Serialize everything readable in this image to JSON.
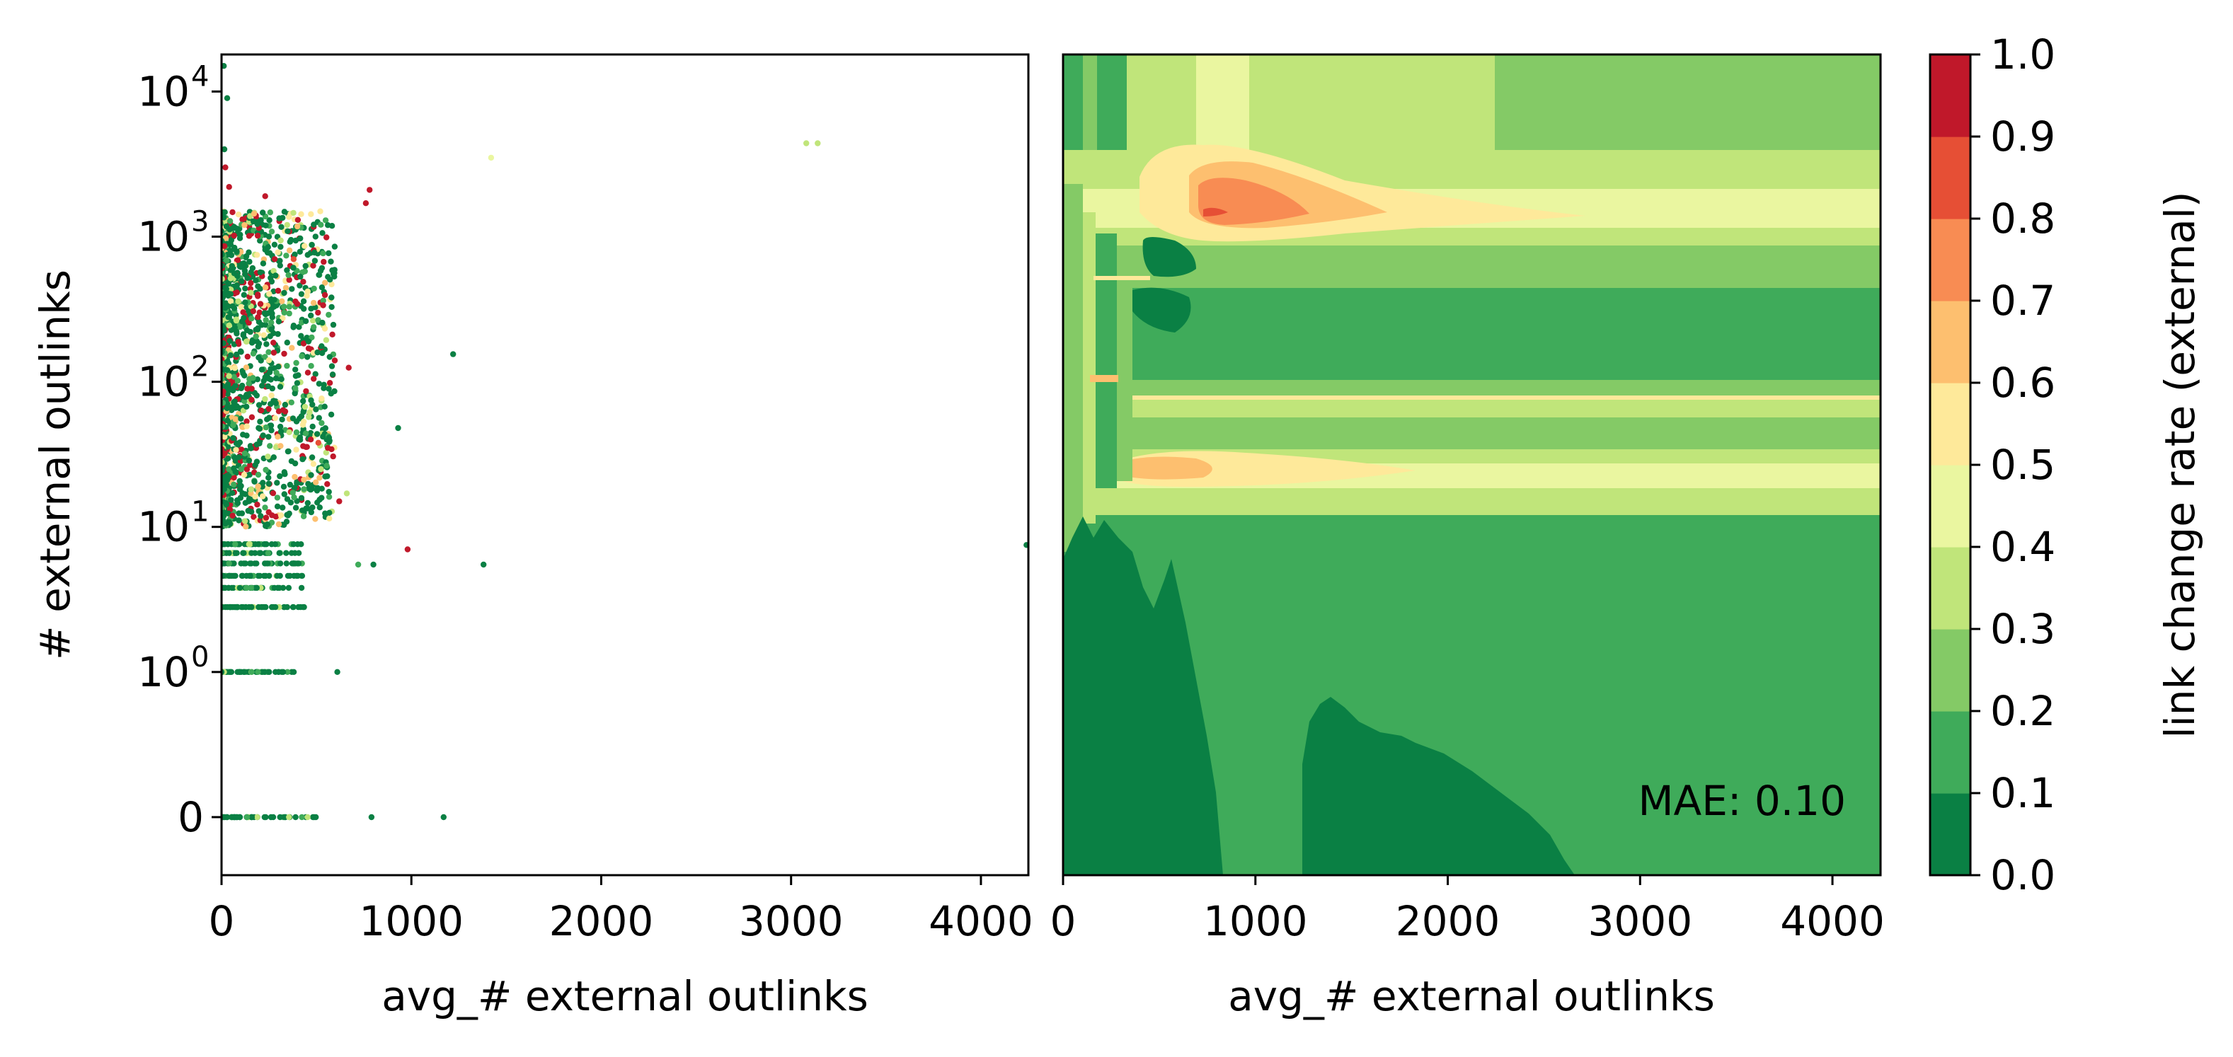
{
  "chart_data": [
    {
      "type": "scatter",
      "xlabel": "avg_# external outlinks",
      "ylabel": "# external outlinks",
      "xlim": [
        0,
        4250
      ],
      "yscale": "symlog",
      "ylim": [
        -0.4,
        18000
      ],
      "xticks": [
        0,
        1000,
        2000,
        3000,
        4000
      ],
      "xtick_labels": [
        "0",
        "1000",
        "2000",
        "3000",
        "4000"
      ],
      "yticks": [
        {
          "value": 0,
          "base": "0",
          "exp": ""
        },
        {
          "value": 1,
          "base": "10",
          "exp": "0"
        },
        {
          "value": 10,
          "base": "10",
          "exp": "1"
        },
        {
          "value": 100,
          "base": "10",
          "exp": "2"
        },
        {
          "value": 1000,
          "base": "10",
          "exp": "3"
        },
        {
          "value": 10000,
          "base": "10",
          "exp": "4"
        }
      ],
      "colormap": "RdYlGn_r",
      "points": [
        {
          "x": 3080,
          "y": 4400,
          "c": 0.35
        },
        {
          "x": 3140,
          "y": 4400,
          "c": 0.35
        },
        {
          "x": 1420,
          "y": 3500,
          "c": 0.4
        },
        {
          "x": 780,
          "y": 2100,
          "c": 0.95
        },
        {
          "x": 760,
          "y": 1700,
          "c": 0.95
        },
        {
          "x": 1220,
          "y": 155,
          "c": 0.05
        },
        {
          "x": 930,
          "y": 48,
          "c": 0.05
        },
        {
          "x": 670,
          "y": 125,
          "c": 0.95
        },
        {
          "x": 660,
          "y": 17,
          "c": 0.3
        },
        {
          "x": 620,
          "y": 15,
          "c": 0.95
        },
        {
          "x": 980,
          "y": 7,
          "c": 0.95
        },
        {
          "x": 1380,
          "y": 5.5,
          "c": 0.05
        },
        {
          "x": 4240,
          "y": 7.5,
          "c": 0.05
        },
        {
          "x": 800,
          "y": 5.5,
          "c": 0.05
        },
        {
          "x": 720,
          "y": 5.5,
          "c": 0.15
        },
        {
          "x": 610,
          "y": 1,
          "c": 0.05
        },
        {
          "x": 790,
          "y": 0,
          "c": 0.05
        },
        {
          "x": 1170,
          "y": 0,
          "c": 0.05
        },
        {
          "x": 470,
          "y": 40,
          "c": 0.95
        },
        {
          "x": 430,
          "y": 36,
          "c": 0.9
        },
        {
          "x": 510,
          "y": 38,
          "c": 0.85
        },
        {
          "x": 560,
          "y": 35,
          "c": 0.95
        },
        {
          "x": 12,
          "y": 15000,
          "c": 0.05
        },
        {
          "x": 30,
          "y": 9000,
          "c": 0.05
        },
        {
          "x": 15,
          "y": 4000,
          "c": 0.05
        },
        {
          "x": 20,
          "y": 3000,
          "c": 0.95
        },
        {
          "x": 40,
          "y": 2200,
          "c": 0.95
        },
        {
          "x": 230,
          "y": 1900,
          "c": 0.95
        },
        {
          "x": 280,
          "y": 700,
          "c": 0.95
        },
        {
          "x": 380,
          "y": 700,
          "c": 0.85
        },
        {
          "x": 560,
          "y": 1200,
          "c": 0.05
        }
      ],
      "clusters": [
        {
          "xmax": 600,
          "ymin": 10,
          "ymax": 1500,
          "count": 1500,
          "mix": "mixed"
        },
        {
          "xmax": 450,
          "rows": [
            2.8,
            3.8,
            4.6,
            5.6,
            6.6,
            7.6
          ],
          "count": 240,
          "mix": "green"
        },
        {
          "xmax": 420,
          "rows": [
            1
          ],
          "count": 40,
          "mix": "green"
        },
        {
          "xmax": 500,
          "rows": [
            0
          ],
          "count": 45,
          "mix": "green"
        }
      ]
    },
    {
      "type": "contourf",
      "xlabel": "avg_# external outlinks",
      "xlim": [
        0,
        4250
      ],
      "xticks": [
        0,
        1000,
        2000,
        3000,
        4000
      ],
      "xtick_labels": [
        "0",
        "1000",
        "2000",
        "3000",
        "4000"
      ],
      "annotation": "MAE: 0.10",
      "colorbar": {
        "label": "link change rate (external)",
        "levels": [
          0.0,
          0.1,
          0.2,
          0.3,
          0.4,
          0.5,
          0.6,
          0.7,
          0.8,
          0.9,
          1.0
        ],
        "tick_labels": [
          "0.0",
          "0.1",
          "0.2",
          "0.3",
          "0.4",
          "0.5",
          "0.6",
          "0.7",
          "0.8",
          "0.9",
          "1.0"
        ],
        "colors": [
          "#0a8044",
          "#3fab5a",
          "#84ca66",
          "#c0e57a",
          "#eaf6a0",
          "#fee99a",
          "#fdbf6f",
          "#f88c53",
          "#e64f35",
          "#c0182a"
        ]
      }
    }
  ]
}
